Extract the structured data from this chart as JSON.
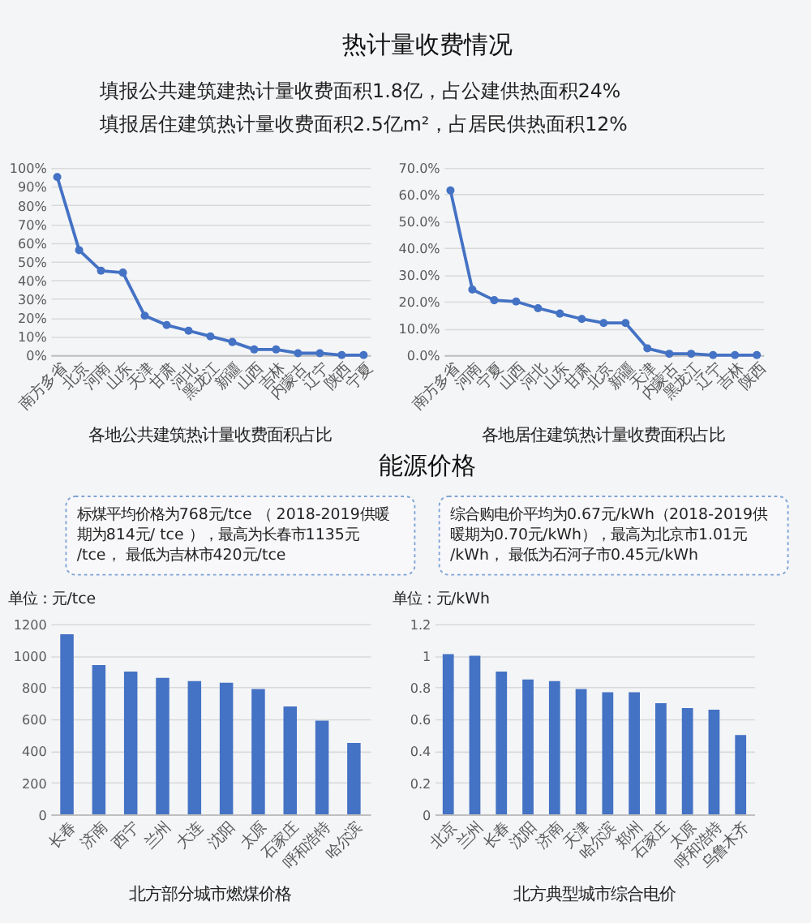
{
  "chart_data": [
    {
      "type": "other",
      "title": "热计量收费情况",
      "annotations": [
        "填报公共建筑建热计量收费面积1.8亿，占公建供热面积24%",
        "填报居住建筑热计量收费面积2.5亿m²，占居民供热面积12%"
      ]
    },
    {
      "type": "line",
      "title": "各地公共建筑热计量收费面积占比",
      "categories": [
        "南方多省",
        "北京",
        "河南",
        "山东",
        "天津",
        "甘肃",
        "河北",
        "黑龙江",
        "新疆",
        "山西",
        "吉林",
        "内蒙古",
        "辽宁",
        "陕西",
        "宁夏"
      ],
      "series": [
        {
          "color": "#4472c4",
          "values": [
            95,
            56,
            45,
            44,
            21,
            16,
            13,
            10,
            7,
            3,
            3,
            1,
            1,
            0,
            0
          ]
        }
      ],
      "ylim": [
        0,
        100
      ],
      "yticks": [
        {
          "value": 0,
          "label": "0%"
        },
        {
          "value": 10,
          "label": "10%"
        },
        {
          "value": 20,
          "label": "20%"
        },
        {
          "value": 30,
          "label": "30%"
        },
        {
          "value": 40,
          "label": "40%"
        },
        {
          "value": 50,
          "label": "50%"
        },
        {
          "value": 60,
          "label": "60%"
        },
        {
          "value": 70,
          "label": "70%"
        },
        {
          "value": 80,
          "label": "80%"
        },
        {
          "value": 90,
          "label": "90%"
        },
        {
          "value": 100,
          "label": "100%"
        }
      ],
      "grid": "y",
      "marker": "circle",
      "line_style": "solid"
    },
    {
      "type": "line",
      "title": "各地居住建筑热计量收费面积占比",
      "categories": [
        "南方多省",
        "河南",
        "宁夏",
        "山西",
        "河北",
        "山东",
        "甘肃",
        "北京",
        "新疆",
        "天津",
        "内蒙古",
        "黑龙江",
        "辽宁",
        "吉林",
        "陕西"
      ],
      "series": [
        {
          "color": "#4472c4",
          "values": [
            61.5,
            24.5,
            20.5,
            20,
            17.5,
            15.5,
            13.5,
            12,
            12,
            2.5,
            0.5,
            0.5,
            0,
            0,
            0
          ]
        }
      ],
      "ylim": [
        0,
        70
      ],
      "yticks": [
        {
          "value": 0,
          "label": "0.0%"
        },
        {
          "value": 10,
          "label": "10.0%"
        },
        {
          "value": 20,
          "label": "20.0%"
        },
        {
          "value": 30,
          "label": "30.0%"
        },
        {
          "value": 40,
          "label": "40.0%"
        },
        {
          "value": 50,
          "label": "50.0%"
        },
        {
          "value": 60,
          "label": "60.0%"
        },
        {
          "value": 70,
          "label": "70.0%"
        }
      ],
      "grid": "y",
      "marker": "circle",
      "line_style": "solid"
    },
    {
      "type": "other",
      "title": "能源价格",
      "annotations": [
        "标煤平均价格为768元/tce （ 2018-2019供暖期为814元/ tce ），最高为长春市1135元/tce， 最低为吉林市420元/tce",
        "综合购电价平均为0.67元/kWh（2018-2019供暖期为0.70元/kWh），最高为北京市1.01元/kWh， 最低为石河子市0.45元/kWh"
      ]
    },
    {
      "type": "bar",
      "title": "北方部分城市燃煤价格",
      "ylabel": "单位：元/tce",
      "categories": [
        "长春",
        "济南",
        "西宁",
        "兰州",
        "大连",
        "沈阳",
        "太原",
        "石家庄",
        "呼和浩特",
        "哈尔滨"
      ],
      "series": [
        {
          "color": "#4472c4",
          "values": [
            1135,
            940,
            900,
            860,
            840,
            830,
            790,
            680,
            590,
            450
          ]
        }
      ],
      "ylim": [
        0,
        1200
      ],
      "yticks": [
        0,
        200,
        400,
        600,
        800,
        1000,
        1200
      ],
      "grid": "y"
    },
    {
      "type": "bar",
      "title": "北方典型城市综合电价",
      "ylabel": "单位：元/kWh",
      "categories": [
        "北京",
        "兰州",
        "长春",
        "沈阳",
        "济南",
        "天津",
        "哈尔滨",
        "郑州",
        "石家庄",
        "太原",
        "呼和浩特",
        "乌鲁木齐"
      ],
      "series": [
        {
          "color": "#4472c4",
          "values": [
            1.01,
            1.0,
            0.9,
            0.85,
            0.84,
            0.79,
            0.77,
            0.77,
            0.7,
            0.67,
            0.66,
            0.5
          ]
        }
      ],
      "ylim": [
        0,
        1.2
      ],
      "yticks": [
        0,
        0.2,
        0.4,
        0.6,
        0.8,
        1,
        1.2
      ],
      "grid": "y"
    }
  ]
}
